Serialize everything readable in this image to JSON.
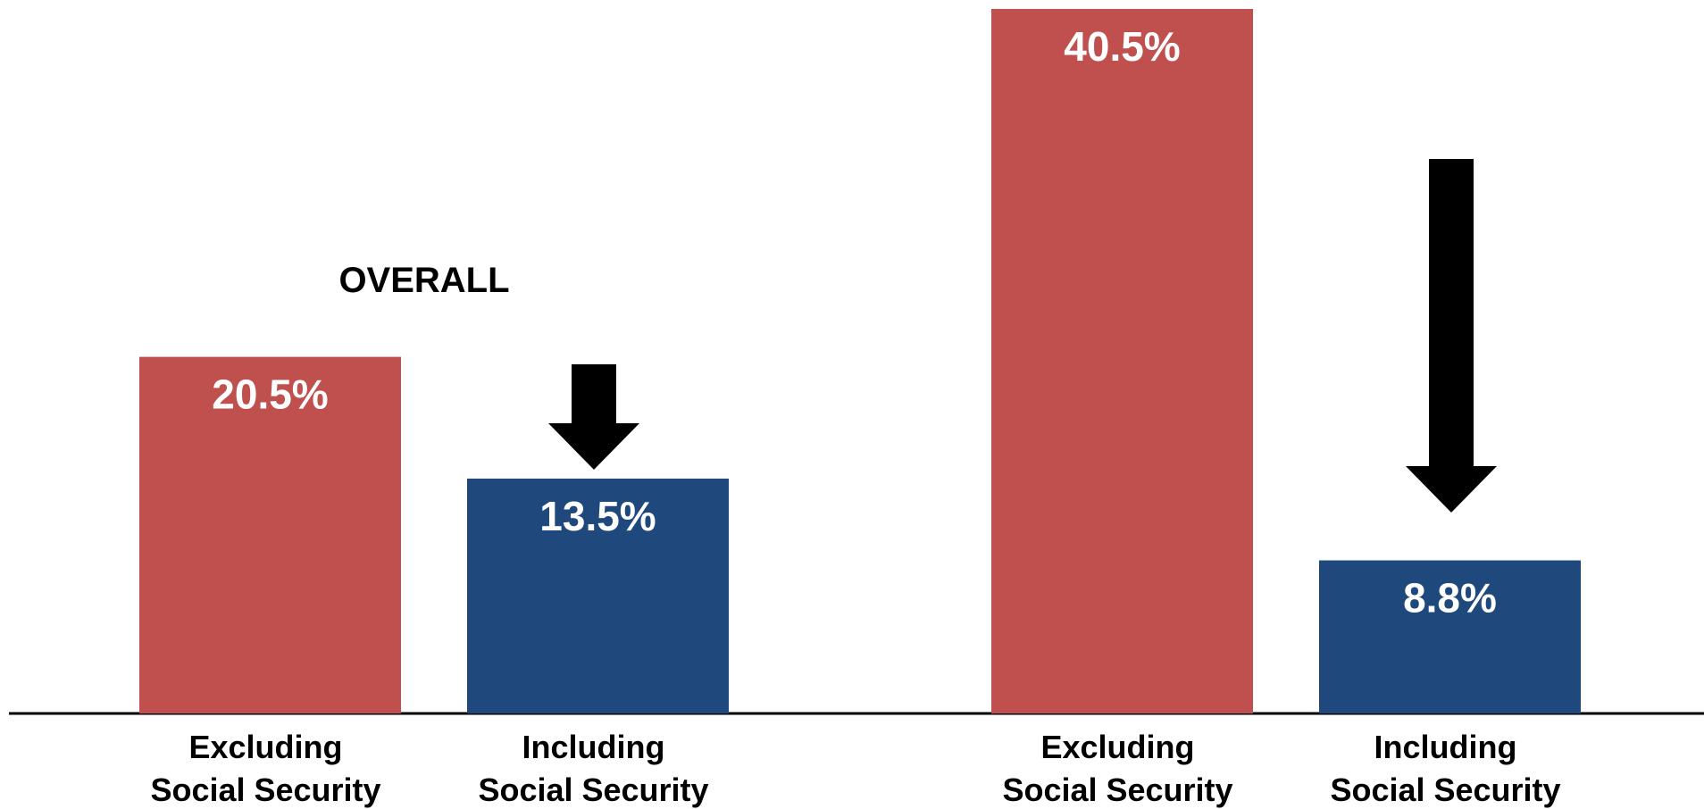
{
  "chart_data": {
    "type": "bar",
    "title": "",
    "xlabel": "",
    "ylabel": "",
    "ylim": [
      0,
      41.5
    ],
    "grid": false,
    "legend": "none",
    "annotations": [
      "OVERALL"
    ],
    "groups": [
      {
        "label": "OVERALL",
        "bars": [
          {
            "category_line1": "Excluding",
            "category_line2": "Social Security",
            "value": 20.5,
            "value_label": "20.5%",
            "color": "#c0504d"
          },
          {
            "category_line1": "Including",
            "category_line2": "Social Security",
            "value": 13.5,
            "value_label": "13.5%",
            "color": "#1f497d"
          }
        ]
      },
      {
        "label": "",
        "bars": [
          {
            "category_line1": "Excluding",
            "category_line2": "Social Security",
            "value": 40.5,
            "value_label": "40.5%",
            "color": "#c0504d"
          },
          {
            "category_line1": "Including",
            "category_line2": "Social Security",
            "value": 8.8,
            "value_label": "8.8%",
            "color": "#1f497d"
          }
        ]
      }
    ]
  }
}
